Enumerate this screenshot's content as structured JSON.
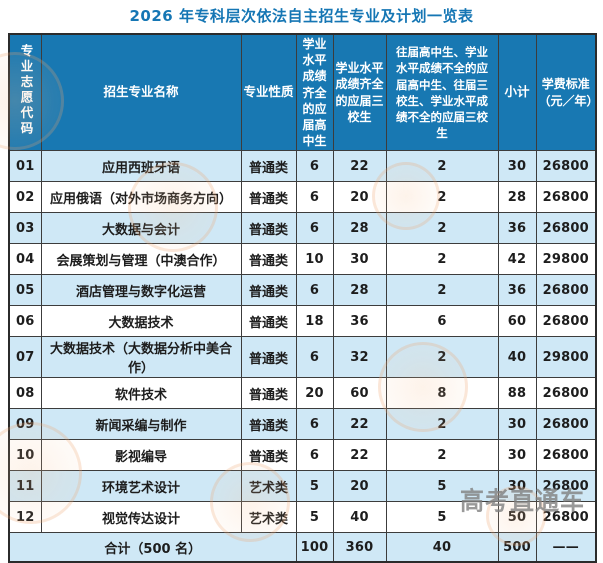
{
  "title": "2026 年专科层次依法自主招生专业及计划一览表",
  "watermark": {
    "text": "高考直通车"
  },
  "colors": {
    "header_blue": "#1878b2",
    "row_light_blue": "#cfe8f6",
    "title_blue": "#1576b4",
    "stamp_orange": "#eea069",
    "watermark_gray": "#808080"
  },
  "table": {
    "headers": {
      "code": "专业志愿代码",
      "major": "招生专业名称",
      "nature": "专业性质",
      "hs": "学业水平成绩齐全的应届高中生",
      "s3": "学业水平成绩齐全的应届三校生",
      "other": "往届高中生、学业水平成绩不全的应届高中生、往届三校生、学业水平成绩不全的应届三校生",
      "subtotal": "小计",
      "fee": "学费标准（元／年）"
    },
    "rows": [
      {
        "code": "01",
        "major": "应用西班牙语",
        "nature": "普通类",
        "hs": "6",
        "s3": "22",
        "other": "2",
        "subtotal": "30",
        "fee": "26800"
      },
      {
        "code": "02",
        "major": "应用俄语（对外市场商务方向）",
        "nature": "普通类",
        "hs": "6",
        "s3": "20",
        "other": "2",
        "subtotal": "28",
        "fee": "26800"
      },
      {
        "code": "03",
        "major": "大数据与会计",
        "nature": "普通类",
        "hs": "6",
        "s3": "28",
        "other": "2",
        "subtotal": "36",
        "fee": "26800"
      },
      {
        "code": "04",
        "major": "会展策划与管理（中澳合作）",
        "nature": "普通类",
        "hs": "10",
        "s3": "30",
        "other": "2",
        "subtotal": "42",
        "fee": "29800"
      },
      {
        "code": "05",
        "major": "酒店管理与数字化运营",
        "nature": "普通类",
        "hs": "6",
        "s3": "28",
        "other": "2",
        "subtotal": "36",
        "fee": "26800"
      },
      {
        "code": "06",
        "major": "大数据技术",
        "nature": "普通类",
        "hs": "18",
        "s3": "36",
        "other": "6",
        "subtotal": "60",
        "fee": "26800"
      },
      {
        "code": "07",
        "major": "大数据技术（大数据分析中美合作）",
        "nature": "普通类",
        "hs": "6",
        "s3": "32",
        "other": "2",
        "subtotal": "40",
        "fee": "29800"
      },
      {
        "code": "08",
        "major": "软件技术",
        "nature": "普通类",
        "hs": "20",
        "s3": "60",
        "other": "8",
        "subtotal": "88",
        "fee": "26800"
      },
      {
        "code": "09",
        "major": "新闻采编与制作",
        "nature": "普通类",
        "hs": "6",
        "s3": "22",
        "other": "2",
        "subtotal": "30",
        "fee": "26800"
      },
      {
        "code": "10",
        "major": "影视编导",
        "nature": "普通类",
        "hs": "6",
        "s3": "22",
        "other": "2",
        "subtotal": "30",
        "fee": "26800"
      },
      {
        "code": "11",
        "major": "环境艺术设计",
        "nature": "艺术类",
        "hs": "5",
        "s3": "20",
        "other": "5",
        "subtotal": "30",
        "fee": "26800"
      },
      {
        "code": "12",
        "major": "视觉传达设计",
        "nature": "艺术类",
        "hs": "5",
        "s3": "40",
        "other": "5",
        "subtotal": "50",
        "fee": "26800"
      }
    ],
    "total": {
      "label": "合计（500 名）",
      "hs": "100",
      "s3": "360",
      "other": "40",
      "subtotal": "500",
      "fee": "——"
    }
  }
}
